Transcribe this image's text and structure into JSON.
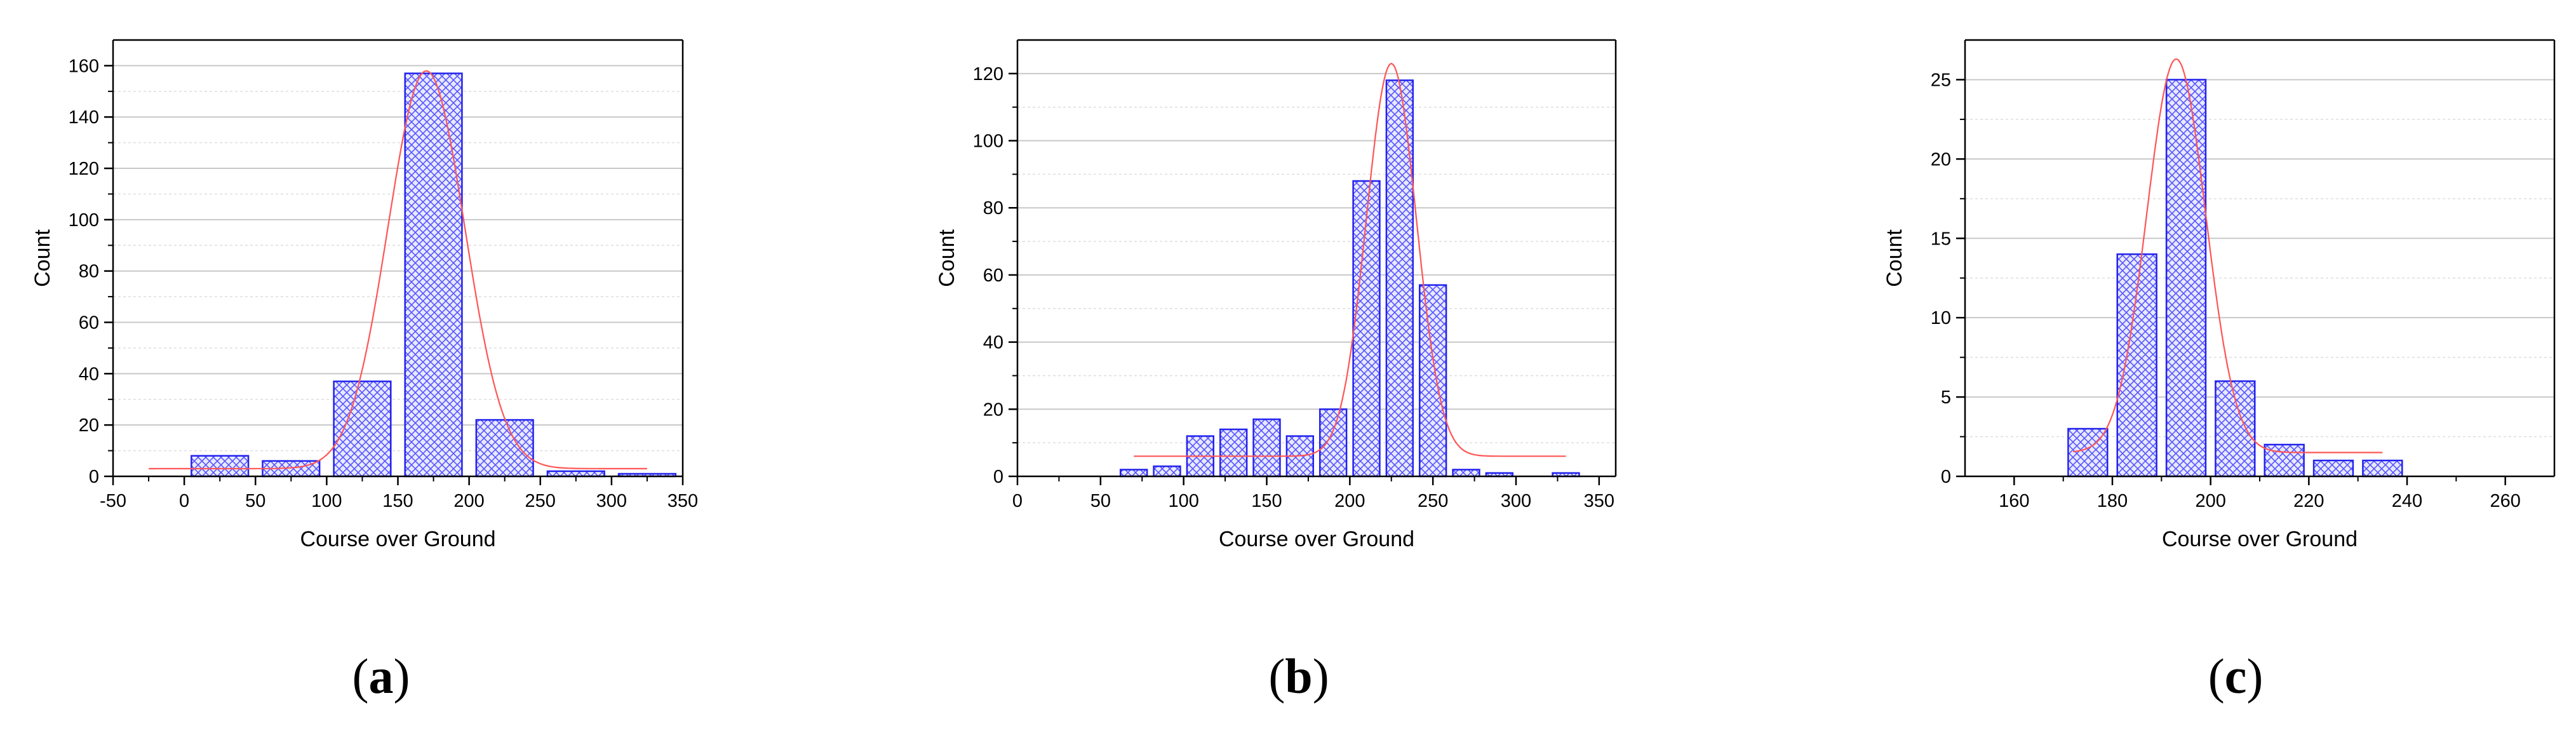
{
  "colors": {
    "bar_stroke": "#2222ee",
    "bar_hatch": "#5555ff",
    "bar_fill_bg": "#e8e8ff",
    "fit_curve": "#ff5555",
    "grid": "#c8c8c8",
    "grid_minor": "#dddddd",
    "axis": "#000000"
  },
  "panels": [
    {
      "caption_open": "(",
      "caption_letter": "a",
      "caption_close": ")"
    },
    {
      "caption_open": "(",
      "caption_letter": "b",
      "caption_close": ")"
    },
    {
      "caption_open": "(",
      "caption_letter": "c",
      "caption_close": ")"
    }
  ],
  "chart_data": [
    {
      "type": "bar",
      "xlabel": "Course over Ground",
      "ylabel": "Count",
      "xlim": [
        -50,
        350
      ],
      "ylim": [
        0,
        170
      ],
      "xticks": [
        -50,
        0,
        50,
        100,
        150,
        200,
        250,
        300,
        350
      ],
      "yticks": [
        0,
        20,
        40,
        60,
        80,
        100,
        120,
        140,
        160
      ],
      "grid": true,
      "bars": [
        {
          "x0": 5,
          "x1": 45,
          "value": 8
        },
        {
          "x0": 55,
          "x1": 95,
          "value": 6
        },
        {
          "x0": 105,
          "x1": 145,
          "value": 37
        },
        {
          "x0": 155,
          "x1": 195,
          "value": 157
        },
        {
          "x0": 205,
          "x1": 245,
          "value": 22
        },
        {
          "x0": 255,
          "x1": 295,
          "value": 2
        },
        {
          "x0": 305,
          "x1": 345,
          "value": 1
        }
      ],
      "fit": {
        "type": "gaussian",
        "baseline": 3,
        "amplitude": 155,
        "center": 170,
        "sigma": 27,
        "x_range": [
          -25,
          325
        ]
      }
    },
    {
      "type": "bar",
      "xlabel": "Course over Ground",
      "ylabel": "Count",
      "xlim": [
        0,
        360
      ],
      "ylim": [
        0,
        130
      ],
      "xticks": [
        0,
        50,
        100,
        150,
        200,
        250,
        300,
        350
      ],
      "yticks": [
        0,
        20,
        40,
        60,
        80,
        100,
        120
      ],
      "grid": true,
      "bars": [
        {
          "x0": 62,
          "x1": 78,
          "value": 2
        },
        {
          "x0": 82,
          "x1": 98,
          "value": 3
        },
        {
          "x0": 102,
          "x1": 118,
          "value": 12
        },
        {
          "x0": 122,
          "x1": 138,
          "value": 14
        },
        {
          "x0": 142,
          "x1": 158,
          "value": 17
        },
        {
          "x0": 162,
          "x1": 178,
          "value": 12
        },
        {
          "x0": 182,
          "x1": 198,
          "value": 20
        },
        {
          "x0": 202,
          "x1": 218,
          "value": 88
        },
        {
          "x0": 222,
          "x1": 238,
          "value": 118
        },
        {
          "x0": 242,
          "x1": 258,
          "value": 57
        },
        {
          "x0": 262,
          "x1": 278,
          "value": 2
        },
        {
          "x0": 282,
          "x1": 298,
          "value": 1
        },
        {
          "x0": 322,
          "x1": 338,
          "value": 1
        }
      ],
      "fit": {
        "type": "gaussian",
        "baseline": 6,
        "amplitude": 117,
        "center": 225,
        "sigma": 15,
        "x_range": [
          70,
          330
        ]
      }
    },
    {
      "type": "bar",
      "xlabel": "Course over Ground",
      "ylabel": "Count",
      "xlim": [
        150,
        270
      ],
      "ylim": [
        0,
        27.5
      ],
      "xticks": [
        160,
        180,
        200,
        220,
        240,
        260
      ],
      "yticks": [
        0,
        5,
        10,
        15,
        20,
        25
      ],
      "grid": true,
      "bars": [
        {
          "x0": 171,
          "x1": 179,
          "value": 3
        },
        {
          "x0": 181,
          "x1": 189,
          "value": 14
        },
        {
          "x0": 191,
          "x1": 199,
          "value": 25
        },
        {
          "x0": 201,
          "x1": 209,
          "value": 6
        },
        {
          "x0": 211,
          "x1": 219,
          "value": 2
        },
        {
          "x0": 221,
          "x1": 229,
          "value": 1
        },
        {
          "x0": 231,
          "x1": 239,
          "value": 1
        }
      ],
      "fit": {
        "type": "gaussian",
        "baseline": 1.5,
        "amplitude": 24.8,
        "center": 193,
        "sigma": 6,
        "x_range": [
          172,
          235
        ]
      }
    }
  ]
}
